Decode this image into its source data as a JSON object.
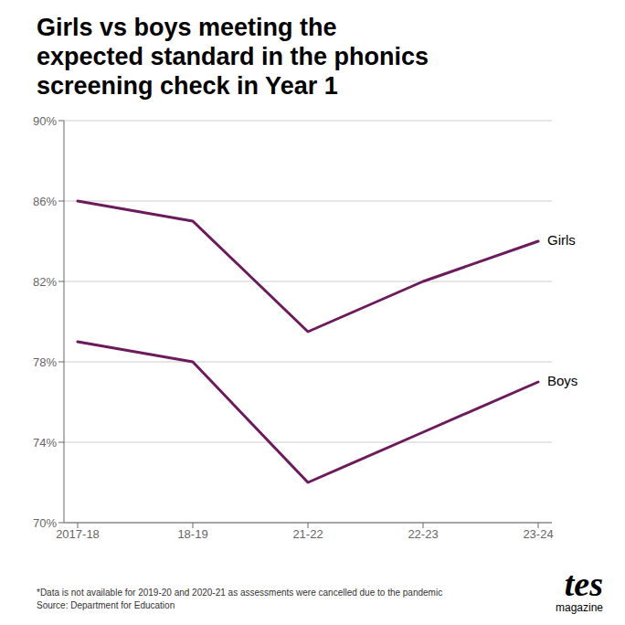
{
  "chart_data": {
    "type": "line",
    "title": "Girls vs boys meeting the\nexpected standard in the phonics\nscreening check in Year 1",
    "categories": [
      "2017-18",
      "18-19",
      "21-22",
      "22-23",
      "23-24"
    ],
    "series": [
      {
        "name": "Girls",
        "color": "#6B1A5C",
        "values": [
          86.0,
          85.0,
          79.5,
          82.0,
          84.0
        ]
      },
      {
        "name": "Boys",
        "color": "#6B1A5C",
        "values": [
          79.0,
          78.0,
          72.0,
          74.5,
          77.0
        ]
      }
    ],
    "ylim": [
      70,
      90
    ],
    "yticks": [
      {
        "value": 70,
        "label": "70%"
      },
      {
        "value": 74,
        "label": "74%"
      },
      {
        "value": 78,
        "label": "78%"
      },
      {
        "value": 82,
        "label": "82%"
      },
      {
        "value": 86,
        "label": "86%"
      },
      {
        "value": 90,
        "label": "90%"
      }
    ],
    "grid": true,
    "annotations": [
      "*Data is not available for 2019-20 and 2020-21 as assessments were cancelled due to the pandemic\nSource: Department for Education",
      "tes",
      "magazine"
    ]
  }
}
